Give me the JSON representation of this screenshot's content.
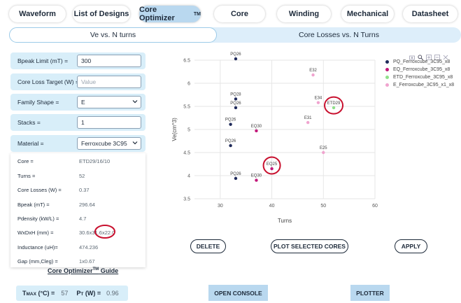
{
  "nav": {
    "waveform": "Waveform",
    "list_of_designs": "List of Designs",
    "core_optimizer": "Core Optimizer",
    "core_optimizer_sup": "TM",
    "core": "Core",
    "winding": "Winding",
    "mechanical": "Mechanical",
    "datasheet": "Datasheet"
  },
  "subtabs": {
    "ve_vs_turns": "Ve vs. N turns",
    "core_losses_vs_turns": "Core Losses vs. N Turns"
  },
  "params": {
    "bpeak_label": "Bpeak Limit (mT) =",
    "bpeak_value": "300",
    "loss_label": "Core Loss Target (W) =",
    "loss_placeholder": "Value",
    "family_label": "Family Shape =",
    "family_value": "E",
    "stacks_label": "Stacks =",
    "stacks_value": "1",
    "material_label": "Material =",
    "material_value": "Ferroxcube 3C95"
  },
  "results": [
    {
      "label": "Core =",
      "value": "ETD29/16/10"
    },
    {
      "label": "Turns =",
      "value": "52"
    },
    {
      "label": "Core Losses (W) =",
      "value": "0.37"
    },
    {
      "label": "Bpeak (mT) =",
      "value": "296.64"
    },
    {
      "label": "Pdensity (kW/L) =",
      "value": "4.7"
    },
    {
      "label": "WxDxH (mm) =",
      "value": "30.6x31.6x22.0"
    },
    {
      "label": "Inductance (uH)=",
      "value": "474.236"
    },
    {
      "label": "Gap (mm,Cleg) =",
      "value": "1x0.67"
    }
  ],
  "guide": {
    "text": "Core Optimizer",
    "sup": "TM",
    "suffix": " Guide"
  },
  "footer": {
    "tmax_label": "T",
    "tmax_sub": "MAX",
    "tmax_unit": " (°C) =",
    "tmax_value": "57",
    "pt_label": "P",
    "pt_sub": "T",
    "pt_unit": " (W) =",
    "pt_value": "0.96"
  },
  "actions": {
    "delete": "DELETE",
    "plot_selected": "PLOT SELECTED CORES",
    "apply": "APPLY",
    "open_console": "OPEN CONSOLE",
    "plotter": "PLOTTER"
  },
  "colors": {
    "active_tab": "#b9d8ef",
    "pq": "#1f2a5a",
    "eq": "#c2187a",
    "etd": "#8fe08a",
    "e": "#f0a4cf",
    "highlight": "#c8102e"
  },
  "chart_data": {
    "type": "scatter",
    "xlabel": "Turns",
    "ylabel": "Ve(cm^3)",
    "xlim": [
      25,
      60
    ],
    "ylim": [
      3.5,
      6.5
    ],
    "xticks": [
      "30",
      "40",
      "50",
      "60"
    ],
    "yticks": [
      "3.5",
      "4",
      "4.5",
      "5",
      "5.5",
      "6",
      "6.5"
    ],
    "grid": true,
    "legend_position": "top-right",
    "series": [
      {
        "name": "PQ_Ferroxcube_3C95_x8",
        "color": "#1f2a5a",
        "points": [
          {
            "x": 33,
            "y": 6.53,
            "label": "PQ26"
          },
          {
            "x": 33,
            "y": 5.66,
            "label": "PQ28"
          },
          {
            "x": 33,
            "y": 5.47,
            "label": "PQ26"
          },
          {
            "x": 32,
            "y": 5.11,
            "label": "PQ26"
          },
          {
            "x": 32,
            "y": 4.65,
            "label": "PQ26"
          },
          {
            "x": 33,
            "y": 3.94,
            "label": "PQ26"
          }
        ]
      },
      {
        "name": "EQ_Ferroxcube_3C95_x8",
        "color": "#c2187a",
        "points": [
          {
            "x": 37,
            "y": 4.97,
            "label": "EQ30"
          },
          {
            "x": 40,
            "y": 4.15,
            "label": "EQ25"
          },
          {
            "x": 37,
            "y": 3.9,
            "label": "EQ30"
          }
        ]
      },
      {
        "name": "ETD_Ferroxcube_3C95_x8",
        "color": "#8fe08a",
        "points": [
          {
            "x": 52,
            "y": 5.47,
            "label": "ETD29"
          }
        ]
      },
      {
        "name": "E_Ferroxcube_3C95_x1_x8",
        "color": "#f0a4cf",
        "points": [
          {
            "x": 48,
            "y": 6.18,
            "label": "E32"
          },
          {
            "x": 49,
            "y": 5.58,
            "label": "E34"
          },
          {
            "x": 47,
            "y": 5.15,
            "label": "E31"
          },
          {
            "x": 50,
            "y": 4.5,
            "label": "E25"
          }
        ]
      }
    ]
  }
}
